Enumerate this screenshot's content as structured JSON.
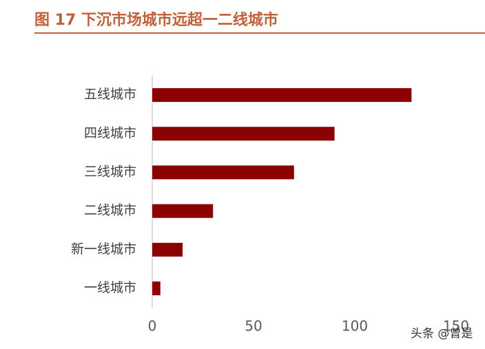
{
  "chart_data": {
    "type": "bar",
    "orientation": "horizontal",
    "title": "图 17 下沉市场城市远超一二线城市",
    "categories": [
      "五线城市",
      "四线城市",
      "三线城市",
      "二线城市",
      "新一线城市",
      "一线城市"
    ],
    "values": [
      128,
      90,
      70,
      30,
      15,
      4
    ],
    "color": "#8b0000",
    "xlim": [
      0,
      150
    ],
    "xticks": [
      0,
      50,
      100,
      150
    ],
    "grid": false,
    "watermark": "头条 @曾是"
  }
}
